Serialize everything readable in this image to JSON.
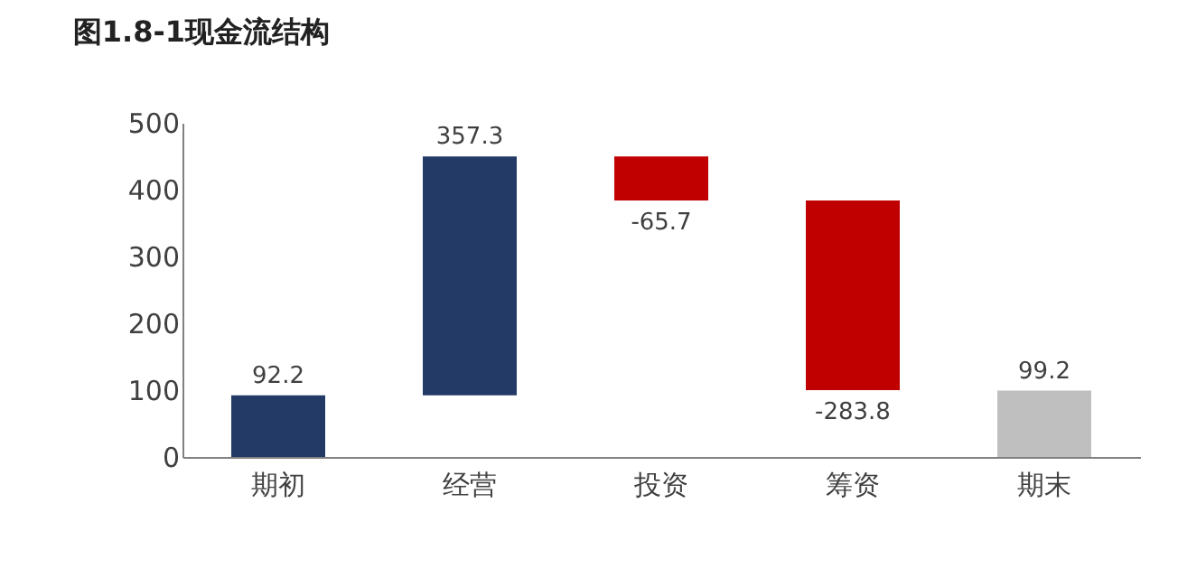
{
  "chart_data": {
    "type": "bar",
    "title": "图1.8-1现金流结构",
    "categories": [
      "期初",
      "经营",
      "投资",
      "筹资",
      "期末"
    ],
    "values": [
      92.2,
      357.3,
      -65.7,
      -283.8,
      99.2
    ],
    "base": [
      0,
      92.2,
      449.5,
      383.8,
      0
    ],
    "colors": [
      "#243a66",
      "#243a66",
      "#c00000",
      "#c00000",
      "#bfbfbf"
    ],
    "ylim": [
      0,
      500
    ],
    "yticks": [
      0,
      100,
      200,
      300,
      400,
      500
    ],
    "data_labels": true,
    "grid": false
  }
}
